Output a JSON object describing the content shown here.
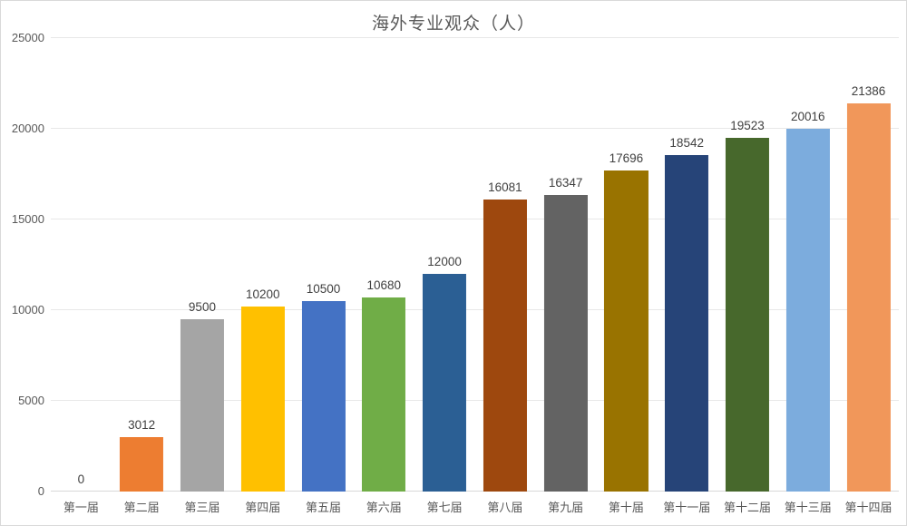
{
  "chart_data": {
    "type": "bar",
    "title": "海外专业观众（人）",
    "xlabel": "",
    "ylabel": "",
    "ylim": [
      0,
      25000
    ],
    "yticks": [
      0,
      5000,
      10000,
      15000,
      20000,
      25000
    ],
    "grid": "horizontal",
    "legend": "none",
    "data_labels": true,
    "categories": [
      "第一届",
      "第二届",
      "第三届",
      "第四届",
      "第五届",
      "第六届",
      "第七届",
      "第八届",
      "第九届",
      "第十届",
      "第十一届",
      "第十二届",
      "第十三届",
      "第十四届"
    ],
    "values": [
      0,
      3012,
      9500,
      10200,
      10500,
      10680,
      12000,
      16081,
      16347,
      17696,
      18542,
      19523,
      20016,
      21386
    ],
    "bar_colors": [
      "#4472C4",
      "#ED7D31",
      "#A5A5A5",
      "#FFC000",
      "#4472C4",
      "#70AD47",
      "#2B5F94",
      "#9E480E",
      "#636363",
      "#997300",
      "#264478",
      "#47682C",
      "#7CACDD",
      "#F1975A"
    ],
    "colors": {
      "gridline": "#e8e8e8",
      "axis_line": "#d9d9d9",
      "tick_label": "#595959",
      "data_label": "#404040",
      "title": "#595959",
      "background": "#ffffff",
      "frame_border": "#d9d9d9"
    }
  }
}
